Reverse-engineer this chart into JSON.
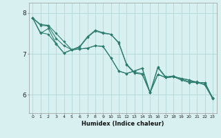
{
  "xlabel": "Humidex (Indice chaleur)",
  "bg_color": "#d8f0f0",
  "grid_color": "#b0d8d8",
  "line_color": "#2d7d6e",
  "x_ticks": [
    0,
    1,
    2,
    3,
    4,
    5,
    6,
    7,
    8,
    9,
    10,
    11,
    12,
    13,
    14,
    15,
    16,
    17,
    18,
    19,
    20,
    21,
    22,
    23
  ],
  "y_ticks": [
    6,
    7,
    8
  ],
  "ylim": [
    5.55,
    8.25
  ],
  "xlim": [
    -0.5,
    23.5
  ],
  "series": [
    [
      7.88,
      7.72,
      7.7,
      7.5,
      7.3,
      7.1,
      7.12,
      7.14,
      7.2,
      7.18,
      6.9,
      6.58,
      6.52,
      6.58,
      6.65,
      6.05,
      6.5,
      6.42,
      6.44,
      6.4,
      6.36,
      6.3,
      6.3,
      5.92
    ],
    [
      7.88,
      7.5,
      7.62,
      7.25,
      7.02,
      7.1,
      7.18,
      7.42,
      7.58,
      7.52,
      7.48,
      7.28,
      6.75,
      6.55,
      6.52,
      6.05,
      6.68,
      6.44,
      6.46,
      6.38,
      6.32,
      6.32,
      6.26,
      5.92
    ],
    [
      7.88,
      7.7,
      7.68,
      7.38,
      7.2,
      7.1,
      7.12,
      7.14,
      7.2,
      7.18,
      6.9,
      6.58,
      6.52,
      6.58,
      6.65,
      6.05,
      6.5,
      6.42,
      6.44,
      6.4,
      6.36,
      6.3,
      6.3,
      5.92
    ],
    [
      7.88,
      7.52,
      7.48,
      7.24,
      7.02,
      7.1,
      7.16,
      7.4,
      7.56,
      7.5,
      7.48,
      7.26,
      6.73,
      6.53,
      6.5,
      6.05,
      6.66,
      6.42,
      6.44,
      6.36,
      6.3,
      6.3,
      6.24,
      5.9
    ]
  ]
}
